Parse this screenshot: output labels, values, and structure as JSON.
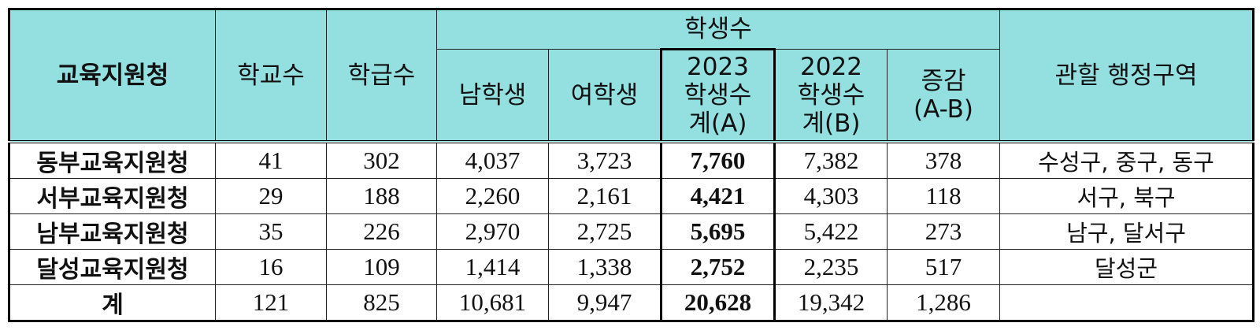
{
  "table": {
    "header": {
      "district": "교육지원청",
      "schools": "학교수",
      "classes": "학급수",
      "students": "학생수",
      "male": "남학생",
      "female": "여학생",
      "total_2023": [
        "2023",
        "학생수",
        "계(A)"
      ],
      "total_2022": [
        "2022",
        "학생수",
        "계(B)"
      ],
      "change": [
        "증감",
        "(A-B)"
      ],
      "region": "관할 행정구역"
    },
    "rows": [
      [
        "동부교육지원청",
        "41",
        "302",
        "4,037",
        "3,723",
        "7,760",
        "7,382",
        "378",
        "수성구, 중구, 동구"
      ],
      [
        "서부교육지원청",
        "29",
        "188",
        "2,260",
        "2,161",
        "4,421",
        "4,303",
        "118",
        "서구, 북구"
      ],
      [
        "남부교육지원청",
        "35",
        "226",
        "2,970",
        "2,725",
        "5,695",
        "5,422",
        "273",
        "남구, 달서구"
      ],
      [
        "달성교육지원청",
        "16",
        "109",
        "1,414",
        "1,338",
        "2,752",
        "2,235",
        "517",
        "달성군"
      ],
      [
        "계",
        "121",
        "825",
        "10,681",
        "9,947",
        "20,628",
        "19,342",
        "1,286"
      ]
    ]
  }
}
